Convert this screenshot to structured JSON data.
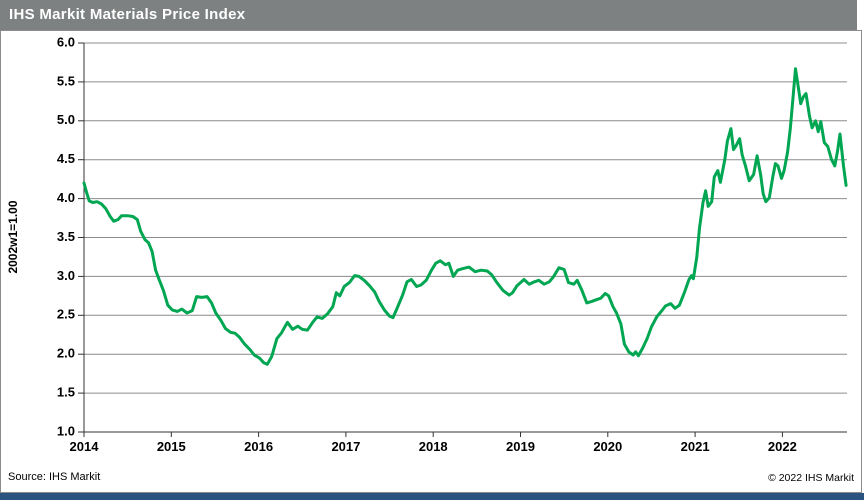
{
  "title": "IHS Markit Materials Price Index",
  "footer": {
    "source": "Source: IHS Markit",
    "copyright": "© 2022  IHS Markit"
  },
  "colors": {
    "titlebar_bg": "#7e8181",
    "title_text": "#ffffff",
    "line": "#00A651",
    "gridline": "#8c8c8c",
    "axis": "#333333",
    "frame_border": "#8c8c8c",
    "accent_bar": "#2b5380",
    "background": "#ffffff"
  },
  "chart_data": {
    "type": "line",
    "title": "IHS Markit Materials Price Index",
    "xlabel": "",
    "ylabel": "2002w1=1.00",
    "ylim": [
      1.0,
      6.0
    ],
    "xlim": [
      2014,
      2022.74
    ],
    "grid": "horizontal",
    "legend": "none",
    "yticks": [
      6.0,
      5.5,
      5.0,
      4.5,
      4.0,
      3.5,
      3.0,
      2.5,
      2.0,
      1.5,
      1.0
    ],
    "ytick_labels": [
      "6.0",
      "5.5",
      "5.0",
      "4.5",
      "4.0",
      "3.5",
      "3.0",
      "2.5",
      "2.0",
      "1.5",
      "1.0"
    ],
    "xticks": [
      2014,
      2015,
      2016,
      2017,
      2018,
      2019,
      2020,
      2021,
      2022
    ],
    "xtick_labels": [
      "2014",
      "2015",
      "2016",
      "2017",
      "2018",
      "2019",
      "2020",
      "2021",
      "2022"
    ],
    "series": [
      {
        "name": "IHS Markit Materials Price Index (2002w1=1.00)",
        "color": "#00A651",
        "points": [
          [
            2014.0,
            4.2
          ],
          [
            2014.03,
            4.08
          ],
          [
            2014.06,
            3.97
          ],
          [
            2014.1,
            3.95
          ],
          [
            2014.15,
            3.96
          ],
          [
            2014.2,
            3.93
          ],
          [
            2014.25,
            3.87
          ],
          [
            2014.3,
            3.77
          ],
          [
            2014.34,
            3.71
          ],
          [
            2014.39,
            3.73
          ],
          [
            2014.43,
            3.78
          ],
          [
            2014.5,
            3.78
          ],
          [
            2014.56,
            3.77
          ],
          [
            2014.61,
            3.73
          ],
          [
            2014.65,
            3.58
          ],
          [
            2014.7,
            3.47
          ],
          [
            2014.74,
            3.43
          ],
          [
            2014.78,
            3.32
          ],
          [
            2014.82,
            3.08
          ],
          [
            2014.86,
            2.96
          ],
          [
            2014.91,
            2.82
          ],
          [
            2014.96,
            2.63
          ],
          [
            2015.01,
            2.57
          ],
          [
            2015.07,
            2.55
          ],
          [
            2015.12,
            2.58
          ],
          [
            2015.18,
            2.53
          ],
          [
            2015.24,
            2.56
          ],
          [
            2015.29,
            2.74
          ],
          [
            2015.35,
            2.73
          ],
          [
            2015.41,
            2.74
          ],
          [
            2015.46,
            2.66
          ],
          [
            2015.51,
            2.53
          ],
          [
            2015.57,
            2.43
          ],
          [
            2015.62,
            2.33
          ],
          [
            2015.68,
            2.28
          ],
          [
            2015.73,
            2.27
          ],
          [
            2015.78,
            2.22
          ],
          [
            2015.84,
            2.13
          ],
          [
            2015.9,
            2.06
          ],
          [
            2015.95,
            1.99
          ],
          [
            2016.01,
            1.95
          ],
          [
            2016.06,
            1.89
          ],
          [
            2016.1,
            1.87
          ],
          [
            2016.15,
            1.97
          ],
          [
            2016.21,
            2.2
          ],
          [
            2016.26,
            2.27
          ],
          [
            2016.33,
            2.41
          ],
          [
            2016.39,
            2.32
          ],
          [
            2016.45,
            2.36
          ],
          [
            2016.5,
            2.32
          ],
          [
            2016.56,
            2.31
          ],
          [
            2016.62,
            2.41
          ],
          [
            2016.67,
            2.48
          ],
          [
            2016.73,
            2.46
          ],
          [
            2016.79,
            2.52
          ],
          [
            2016.85,
            2.61
          ],
          [
            2016.89,
            2.79
          ],
          [
            2016.93,
            2.75
          ],
          [
            2016.98,
            2.87
          ],
          [
            2017.04,
            2.92
          ],
          [
            2017.1,
            3.01
          ],
          [
            2017.15,
            3.0
          ],
          [
            2017.21,
            2.95
          ],
          [
            2017.27,
            2.88
          ],
          [
            2017.33,
            2.8
          ],
          [
            2017.38,
            2.68
          ],
          [
            2017.44,
            2.57
          ],
          [
            2017.5,
            2.49
          ],
          [
            2017.54,
            2.47
          ],
          [
            2017.59,
            2.6
          ],
          [
            2017.65,
            2.76
          ],
          [
            2017.7,
            2.93
          ],
          [
            2017.75,
            2.96
          ],
          [
            2017.81,
            2.87
          ],
          [
            2017.86,
            2.89
          ],
          [
            2017.92,
            2.95
          ],
          [
            2017.98,
            3.08
          ],
          [
            2018.03,
            3.17
          ],
          [
            2018.08,
            3.2
          ],
          [
            2018.14,
            3.15
          ],
          [
            2018.18,
            3.17
          ],
          [
            2018.23,
            3.0
          ],
          [
            2018.28,
            3.08
          ],
          [
            2018.34,
            3.1
          ],
          [
            2018.41,
            3.12
          ],
          [
            2018.48,
            3.06
          ],
          [
            2018.55,
            3.08
          ],
          [
            2018.62,
            3.07
          ],
          [
            2018.67,
            3.02
          ],
          [
            2018.73,
            2.92
          ],
          [
            2018.8,
            2.82
          ],
          [
            2018.87,
            2.76
          ],
          [
            2018.91,
            2.79
          ],
          [
            2018.96,
            2.88
          ],
          [
            2019.04,
            2.96
          ],
          [
            2019.1,
            2.9
          ],
          [
            2019.16,
            2.93
          ],
          [
            2019.21,
            2.95
          ],
          [
            2019.27,
            2.9
          ],
          [
            2019.33,
            2.93
          ],
          [
            2019.38,
            3.0
          ],
          [
            2019.44,
            3.11
          ],
          [
            2019.5,
            3.09
          ],
          [
            2019.55,
            2.92
          ],
          [
            2019.61,
            2.9
          ],
          [
            2019.65,
            2.95
          ],
          [
            2019.7,
            2.83
          ],
          [
            2019.76,
            2.66
          ],
          [
            2019.82,
            2.68
          ],
          [
            2019.87,
            2.7
          ],
          [
            2019.92,
            2.72
          ],
          [
            2019.97,
            2.78
          ],
          [
            2020.01,
            2.75
          ],
          [
            2020.06,
            2.61
          ],
          [
            2020.1,
            2.53
          ],
          [
            2020.15,
            2.39
          ],
          [
            2020.19,
            2.13
          ],
          [
            2020.24,
            2.03
          ],
          [
            2020.29,
            1.99
          ],
          [
            2020.32,
            2.03
          ],
          [
            2020.35,
            1.98
          ],
          [
            2020.4,
            2.08
          ],
          [
            2020.45,
            2.2
          ],
          [
            2020.5,
            2.35
          ],
          [
            2020.56,
            2.48
          ],
          [
            2020.62,
            2.56
          ],
          [
            2020.66,
            2.62
          ],
          [
            2020.72,
            2.65
          ],
          [
            2020.77,
            2.59
          ],
          [
            2020.82,
            2.63
          ],
          [
            2020.88,
            2.8
          ],
          [
            2020.93,
            2.96
          ],
          [
            2020.96,
            3.01
          ],
          [
            2020.98,
            2.97
          ],
          [
            2021.02,
            3.25
          ],
          [
            2021.05,
            3.62
          ],
          [
            2021.09,
            3.95
          ],
          [
            2021.12,
            4.1
          ],
          [
            2021.15,
            3.9
          ],
          [
            2021.19,
            3.96
          ],
          [
            2021.22,
            4.28
          ],
          [
            2021.26,
            4.36
          ],
          [
            2021.29,
            4.21
          ],
          [
            2021.34,
            4.5
          ],
          [
            2021.37,
            4.74
          ],
          [
            2021.41,
            4.9
          ],
          [
            2021.44,
            4.63
          ],
          [
            2021.47,
            4.68
          ],
          [
            2021.51,
            4.77
          ],
          [
            2021.54,
            4.56
          ],
          [
            2021.58,
            4.41
          ],
          [
            2021.62,
            4.23
          ],
          [
            2021.67,
            4.31
          ],
          [
            2021.71,
            4.55
          ],
          [
            2021.75,
            4.31
          ],
          [
            2021.78,
            4.06
          ],
          [
            2021.81,
            3.96
          ],
          [
            2021.85,
            4.01
          ],
          [
            2021.89,
            4.28
          ],
          [
            2021.92,
            4.45
          ],
          [
            2021.95,
            4.42
          ],
          [
            2021.99,
            4.26
          ],
          [
            2022.02,
            4.36
          ],
          [
            2022.06,
            4.6
          ],
          [
            2022.09,
            4.9
          ],
          [
            2022.12,
            5.28
          ],
          [
            2022.15,
            5.67
          ],
          [
            2022.18,
            5.45
          ],
          [
            2022.21,
            5.22
          ],
          [
            2022.24,
            5.31
          ],
          [
            2022.27,
            5.35
          ],
          [
            2022.31,
            5.06
          ],
          [
            2022.34,
            4.91
          ],
          [
            2022.38,
            5.0
          ],
          [
            2022.41,
            4.86
          ],
          [
            2022.44,
            4.99
          ],
          [
            2022.48,
            4.72
          ],
          [
            2022.52,
            4.67
          ],
          [
            2022.56,
            4.51
          ],
          [
            2022.6,
            4.42
          ],
          [
            2022.63,
            4.6
          ],
          [
            2022.66,
            4.83
          ],
          [
            2022.7,
            4.42
          ],
          [
            2022.73,
            4.17
          ]
        ]
      }
    ]
  }
}
